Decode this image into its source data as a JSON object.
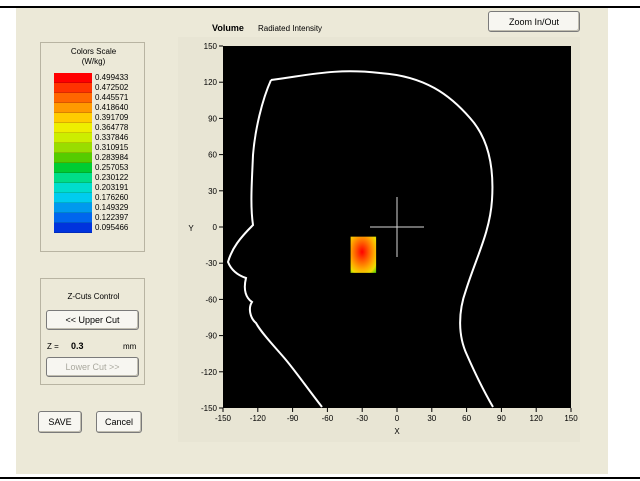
{
  "header": {
    "title_bold": "Volume",
    "title_sub": "Radiated Intensity",
    "zoom_button": "Zoom In/Out"
  },
  "colors_scale": {
    "title_line1": "Colors Scale",
    "title_line2": "(W/kg)",
    "entries": [
      {
        "value": "0.499433",
        "color": "#ff0000"
      },
      {
        "value": "0.472502",
        "color": "#ff3300"
      },
      {
        "value": "0.445571",
        "color": "#ff6600"
      },
      {
        "value": "0.418640",
        "color": "#ff9900"
      },
      {
        "value": "0.391709",
        "color": "#ffcc00"
      },
      {
        "value": "0.364778",
        "color": "#eeee00"
      },
      {
        "value": "0.337846",
        "color": "#ccee00"
      },
      {
        "value": "0.310915",
        "color": "#99dd00"
      },
      {
        "value": "0.283984",
        "color": "#55cc00"
      },
      {
        "value": "0.257053",
        "color": "#00cc33"
      },
      {
        "value": "0.230122",
        "color": "#00dd88"
      },
      {
        "value": "0.203191",
        "color": "#00ddcc"
      },
      {
        "value": "0.176260",
        "color": "#00ccee"
      },
      {
        "value": "0.149329",
        "color": "#0099ee"
      },
      {
        "value": "0.122397",
        "color": "#0066ee"
      },
      {
        "value": "0.095466",
        "color": "#0033dd"
      }
    ]
  },
  "zcuts": {
    "title": "Z-Cuts Control",
    "upper_button": "<< Upper Cut",
    "z_label": "Z =",
    "z_value": "0.3",
    "z_unit": "mm",
    "lower_button": "Lower Cut >>"
  },
  "actions": {
    "save": "SAVE",
    "cancel": "Cancel"
  },
  "chart_data": {
    "type": "heatmap",
    "xlabel": "X",
    "ylabel": "Y",
    "xlim": [
      -150,
      150
    ],
    "ylim": [
      -150,
      150
    ],
    "xticks": [
      "-150",
      "-120",
      "-90",
      "-60",
      "-30",
      "0",
      "30",
      "60",
      "90",
      "120",
      "150"
    ],
    "yticks": [
      "150",
      "120",
      "90",
      "60",
      "30",
      "0",
      "-30",
      "-60",
      "-90",
      "-120",
      "-150"
    ],
    "background": "#000000",
    "outline_color": "#ffffff",
    "hotspot": {
      "x0": -40,
      "x1": -18,
      "y0": -38,
      "y1": -8,
      "peak_x": -32,
      "peak_y": -20
    },
    "crosshair": {
      "x": 0,
      "y": 0
    }
  }
}
